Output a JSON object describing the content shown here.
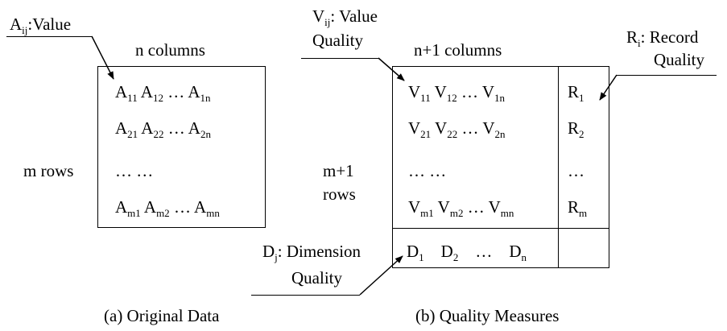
{
  "panel_a": {
    "callout": "A",
    "callout_sub": "ij",
    "callout_text": ":Value",
    "header": "n columns",
    "row_label": "m rows",
    "matrix_rows": [
      [
        {
          "b": "A",
          "s": "11"
        },
        {
          "b": "A",
          "s": "12"
        },
        {
          "b": "…",
          "s": ""
        },
        {
          "b": "A",
          "s": "1n"
        }
      ],
      [
        {
          "b": "A",
          "s": "21"
        },
        {
          "b": "A",
          "s": "22"
        },
        {
          "b": "…",
          "s": ""
        },
        {
          "b": "A",
          "s": "2n"
        }
      ],
      [
        {
          "b": "…",
          "s": ""
        },
        {
          "b": "…",
          "s": ""
        }
      ],
      [
        {
          "b": "A",
          "s": "m1"
        },
        {
          "b": "A",
          "s": "m2"
        },
        {
          "b": "…",
          "s": ""
        },
        {
          "b": "A",
          "s": "mn"
        }
      ]
    ],
    "caption": "(a) Original Data"
  },
  "panel_b": {
    "value_callout": "V",
    "value_callout_sub": "ij",
    "value_callout_line1": ": Value",
    "value_callout_line2": "Quality",
    "header": "n+1 columns",
    "record_callout_line1": "R",
    "record_callout_sub": "i",
    "record_callout_line1_rest": ": Record",
    "record_callout_line2": "Quality",
    "row_label_line1": "m+1",
    "row_label_line2": "rows",
    "matrix_rows": [
      [
        {
          "b": "V",
          "s": "11"
        },
        {
          "b": "V",
          "s": "12"
        },
        {
          "b": "…",
          "s": ""
        },
        {
          "b": "V",
          "s": "1n"
        }
      ],
      [
        {
          "b": "V",
          "s": "21"
        },
        {
          "b": "V",
          "s": "22"
        },
        {
          "b": "…",
          "s": ""
        },
        {
          "b": "V",
          "s": "2n"
        }
      ],
      [
        {
          "b": "…",
          "s": ""
        },
        {
          "b": "…",
          "s": ""
        }
      ],
      [
        {
          "b": "V",
          "s": "m1"
        },
        {
          "b": "V",
          "s": "m2"
        },
        {
          "b": "…",
          "s": ""
        },
        {
          "b": "V",
          "s": "mn"
        }
      ]
    ],
    "record_rows": [
      {
        "b": "R",
        "s": "1"
      },
      {
        "b": "R",
        "s": "2"
      },
      {
        "b": "…",
        "s": ""
      },
      {
        "b": "R",
        "s": "m"
      }
    ],
    "dimension_row": [
      {
        "b": "D",
        "s": "1"
      },
      {
        "b": "D",
        "s": "2"
      },
      {
        "b": "…",
        "s": ""
      },
      {
        "b": "D",
        "s": "n"
      }
    ],
    "dimension_callout": "D",
    "dimension_callout_sub": "j",
    "dimension_callout_line1_rest": ": Dimension",
    "dimension_callout_line2": "Quality",
    "caption": "(b) Quality Measures"
  },
  "colors": {
    "ink": "#000000",
    "background": "#ffffff"
  }
}
